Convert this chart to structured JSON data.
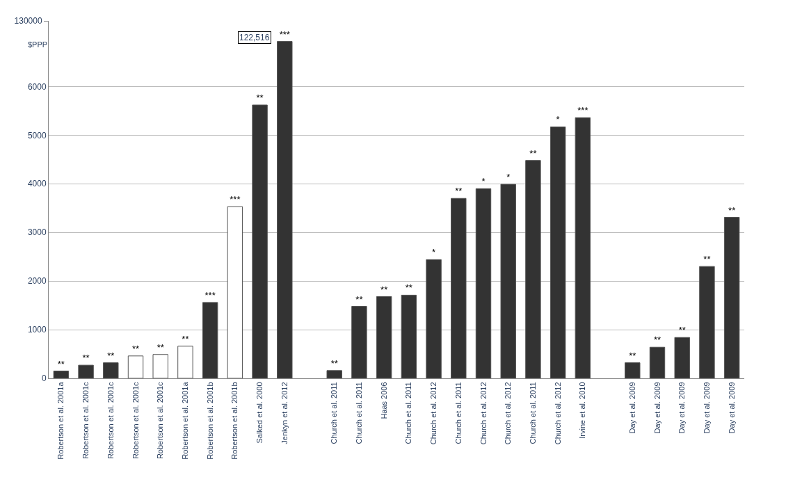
{
  "chart_data": {
    "type": "bar",
    "ylabel": "$PPP",
    "categories": [
      "Robertson et al. 2001a",
      "Robertson et al. 2001c",
      "Robertson et al. 2001c",
      "Robertson et al. 2001c",
      "Robertson et al. 2001c",
      "Robertson et al. 2001a",
      "Robertson et al. 2001b",
      "Robertson et al. 2001b",
      "Salked et al. 2000",
      "Jenkyn et al. 2012",
      null,
      "Church et al. 2011",
      "Church et al. 2011",
      "Haas 2006",
      "Church et al. 2011",
      "Church et al. 2012",
      "Church et al. 2011",
      "Church et al. 2012",
      "Church et al. 2012",
      "Church et al. 2011",
      "Church et al. 2012",
      "Irvine et al. 2010",
      null,
      "Day et al. 2009",
      "Day et al. 2009",
      "Day et al. 2009",
      "Day et al. 2009",
      "Day et al. 2009"
    ],
    "series": [
      {
        "colors": [
          "#333333",
          "#333333",
          "#333333",
          "#ffffff",
          "#ffffff",
          "#ffffff",
          "#333333",
          "#ffffff",
          "#333333",
          "#333333",
          null,
          "#333333",
          "#333333",
          "#333333",
          "#333333",
          "#333333",
          "#333333",
          "#333333",
          "#333333",
          "#333333",
          "#333333",
          "#333333",
          null,
          "#333333",
          "#333333",
          "#333333",
          "#333333",
          "#333333"
        ],
        "values": [
          150,
          270,
          320,
          460,
          490,
          660,
          1560,
          3530,
          5620,
          null,
          null,
          160,
          1480,
          1680,
          1710,
          2440,
          3700,
          3900,
          3990,
          4480,
          5170,
          5360,
          null,
          320,
          640,
          840,
          2300,
          3310
        ],
        "value_labels": [
          "**",
          "**",
          "**",
          "**",
          "**",
          "**",
          "***",
          "***",
          "**",
          null,
          null,
          "**",
          "**",
          "**",
          "**",
          "*",
          "**",
          "*",
          "*",
          "**",
          "*",
          "***",
          null,
          "**",
          "**",
          "**",
          "**",
          "**"
        ]
      },
      {
        "color": "#333333",
        "axis": "y2",
        "values": [
          null,
          null,
          null,
          null,
          null,
          null,
          null,
          null,
          null,
          122516,
          null,
          null,
          null,
          null,
          null,
          null,
          null,
          null,
          null,
          null,
          null,
          null,
          null,
          null,
          null,
          null,
          null,
          null
        ],
        "value_labels": [
          null,
          null,
          null,
          null,
          null,
          null,
          null,
          null,
          null,
          "***",
          null,
          null,
          null,
          null,
          null,
          null,
          null,
          null,
          null,
          null,
          null,
          null,
          null,
          null,
          null,
          null,
          null,
          null
        ]
      }
    ],
    "ylim": [
      0,
      7350
    ],
    "yticks": [
      0,
      1000,
      2000,
      3000,
      4000,
      5000,
      6000
    ],
    "y2lim": [
      0,
      130000
    ],
    "y2ticks": [
      130000
    ],
    "annotations": [
      "122,516"
    ],
    "grid": "y"
  }
}
